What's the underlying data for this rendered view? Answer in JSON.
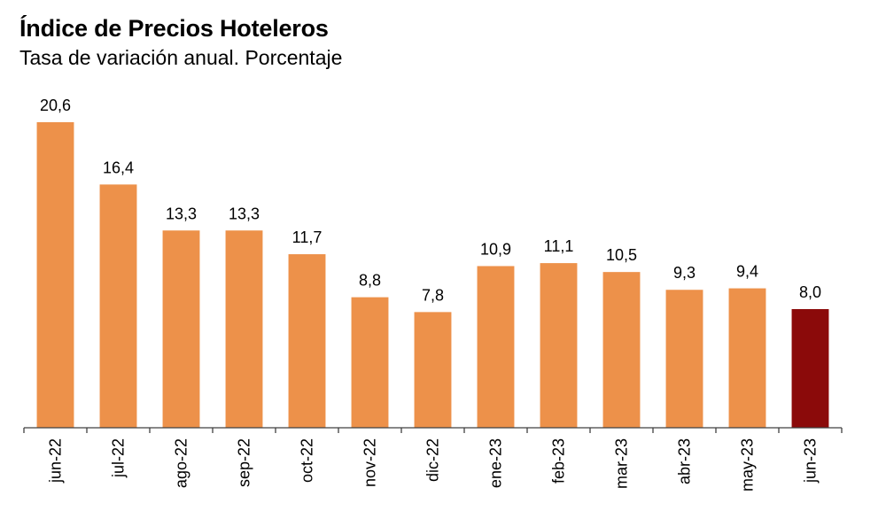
{
  "chart_data": {
    "type": "bar",
    "title": "Índice de Precios Hoteleros",
    "subtitle": "Tasa de variación anual. Porcentaje",
    "xlabel": "",
    "ylabel": "",
    "categories": [
      "jun-22",
      "jul-22",
      "ago-22",
      "sep-22",
      "oct-22",
      "nov-22",
      "dic-22",
      "ene-23",
      "feb-23",
      "mar-23",
      "abr-23",
      "may-23",
      "jun-23"
    ],
    "values": [
      20.6,
      16.4,
      13.3,
      13.3,
      11.7,
      8.8,
      7.8,
      10.9,
      11.1,
      10.5,
      9.3,
      9.4,
      8.0
    ],
    "data_labels": [
      "20,6",
      "16,4",
      "13,3",
      "13,3",
      "11,7",
      "8,8",
      "7,8",
      "10,9",
      "11,1",
      "10,5",
      "9,3",
      "9,4",
      "8,0"
    ],
    "ylim": [
      0,
      21
    ],
    "grid": false,
    "legend": "none",
    "colors": {
      "default_bar": "#ED914A",
      "highlight_bar": "#8B0A0A",
      "highlight_index": 12,
      "axis": "#404040"
    }
  }
}
